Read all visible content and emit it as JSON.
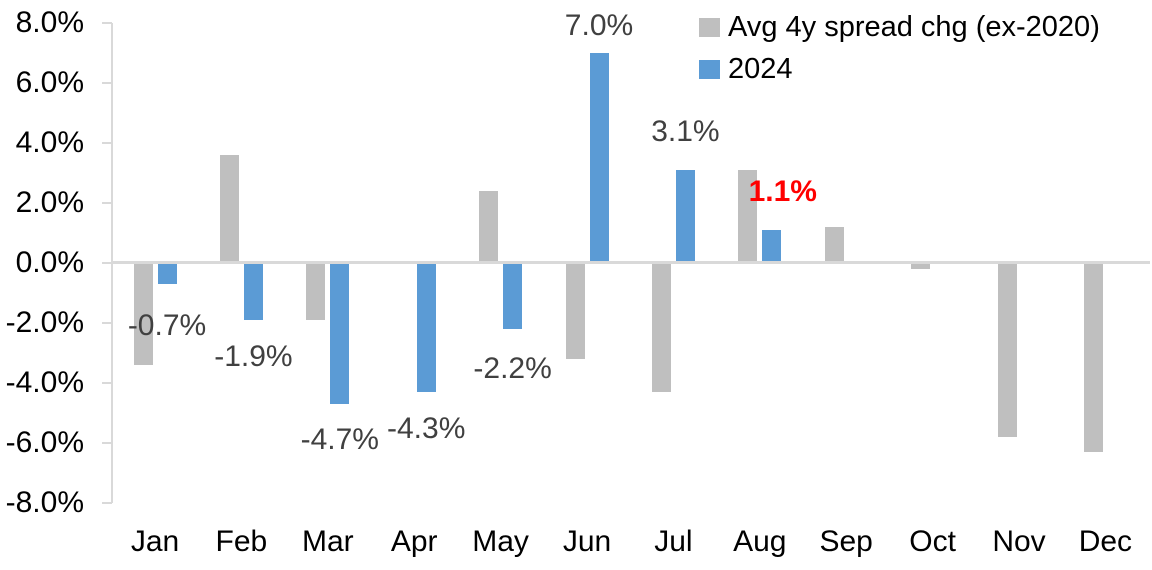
{
  "chart_data": {
    "type": "bar",
    "title": "",
    "xlabel": "",
    "ylabel": "",
    "categories": [
      "Jan",
      "Feb",
      "Mar",
      "Apr",
      "May",
      "Jun",
      "Jul",
      "Aug",
      "Sep",
      "Oct",
      "Nov",
      "Dec"
    ],
    "series": [
      {
        "name": "Avg 4y spread chg (ex-2020)",
        "color": "#BFBFBF",
        "values": [
          -3.4,
          3.6,
          -1.9,
          0.0,
          2.4,
          -3.2,
          -4.3,
          3.1,
          1.2,
          -0.2,
          -5.8,
          -6.3
        ]
      },
      {
        "name": "2024",
        "color": "#5B9BD5",
        "values": [
          -0.7,
          -1.9,
          -4.7,
          -4.3,
          -2.2,
          7.0,
          3.1,
          1.1,
          null,
          null,
          null,
          null
        ]
      }
    ],
    "data_labels": [
      {
        "text": "-0.7%",
        "category_index": 0,
        "series": "2024",
        "y_center": -2.1,
        "color": "#404040",
        "bold": false,
        "dx": 0
      },
      {
        "text": "-1.9%",
        "category_index": 1,
        "series": "2024",
        "y_center": -3.15,
        "color": "#404040",
        "bold": false,
        "dx": 0
      },
      {
        "text": "-4.7%",
        "category_index": 2,
        "series": "2024",
        "y_center": -5.9,
        "color": "#404040",
        "bold": false,
        "dx": 0
      },
      {
        "text": "-4.3%",
        "category_index": 3,
        "series": "2024",
        "y_center": -5.55,
        "color": "#404040",
        "bold": false,
        "dx": 0
      },
      {
        "text": "-2.2%",
        "category_index": 4,
        "series": "2024",
        "y_center": -3.55,
        "color": "#404040",
        "bold": false,
        "dx": 0
      },
      {
        "text": "7.0%",
        "category_index": 5,
        "series": "2024",
        "y_center": 7.9,
        "color": "#404040",
        "bold": false,
        "dx": 0
      },
      {
        "text": "3.1%",
        "category_index": 6,
        "series": "2024",
        "y_center": 4.35,
        "color": "#404040",
        "bold": false,
        "dx": 0
      },
      {
        "text": "1.1%",
        "category_index": 7,
        "series": "2024",
        "y_center": 2.35,
        "color": "#FF0000",
        "bold": true,
        "dx": 11
      }
    ],
    "y_axis": {
      "ylim": [
        -8,
        8
      ],
      "tick_values": [
        8,
        6,
        4,
        2,
        0,
        -2,
        -4,
        -6,
        -8
      ],
      "tick_labels": [
        "8.0%",
        "6.0%",
        "4.0%",
        "2.0%",
        "0.0%",
        "-2.0%",
        "-4.0%",
        "-6.0%",
        "-8.0%"
      ]
    },
    "legend": {
      "position": "top-right",
      "entries": [
        {
          "label": "Avg 4y spread chg (ex-2020)",
          "color": "#BFBFBF"
        },
        {
          "label": "2024",
          "color": "#5B9BD5"
        }
      ]
    },
    "grid": false,
    "axis_color": "#D9D9D9",
    "background": "#FFFFFF"
  }
}
